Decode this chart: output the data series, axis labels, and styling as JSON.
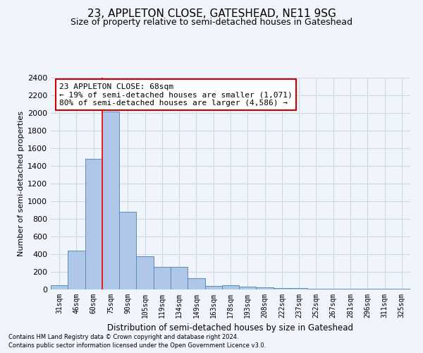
{
  "title": "23, APPLETON CLOSE, GATESHEAD, NE11 9SG",
  "subtitle": "Size of property relative to semi-detached houses in Gateshead",
  "xlabel": "Distribution of semi-detached houses by size in Gateshead",
  "ylabel": "Number of semi-detached properties",
  "categories": [
    "31sqm",
    "46sqm",
    "60sqm",
    "75sqm",
    "90sqm",
    "105sqm",
    "119sqm",
    "134sqm",
    "149sqm",
    "163sqm",
    "178sqm",
    "193sqm",
    "208sqm",
    "222sqm",
    "237sqm",
    "252sqm",
    "267sqm",
    "281sqm",
    "296sqm",
    "311sqm",
    "325sqm"
  ],
  "values": [
    45,
    440,
    1480,
    2020,
    880,
    375,
    260,
    260,
    130,
    40,
    45,
    30,
    25,
    20,
    15,
    10,
    5,
    5,
    5,
    5,
    5
  ],
  "bar_color": "#aec6e8",
  "bar_edge_color": "#5b8db8",
  "grid_color": "#d0d8e8",
  "background_color": "#f0f4fb",
  "red_line_x": 2.5,
  "annotation_text": "23 APPLETON CLOSE: 68sqm\n← 19% of semi-detached houses are smaller (1,071)\n80% of semi-detached houses are larger (4,586) →",
  "annotation_box_color": "#ffffff",
  "annotation_box_edge": "#cc0000",
  "ylim": [
    0,
    2400
  ],
  "yticks": [
    0,
    200,
    400,
    600,
    800,
    1000,
    1200,
    1400,
    1600,
    1800,
    2000,
    2200,
    2400
  ],
  "footer1": "Contains HM Land Registry data © Crown copyright and database right 2024.",
  "footer2": "Contains public sector information licensed under the Open Government Licence v3.0.",
  "title_fontsize": 11,
  "subtitle_fontsize": 9,
  "ylabel_fontsize": 8,
  "xlabel_fontsize": 8.5,
  "ytick_fontsize": 8,
  "xtick_fontsize": 7,
  "footer_fontsize": 6,
  "annot_fontsize": 8
}
